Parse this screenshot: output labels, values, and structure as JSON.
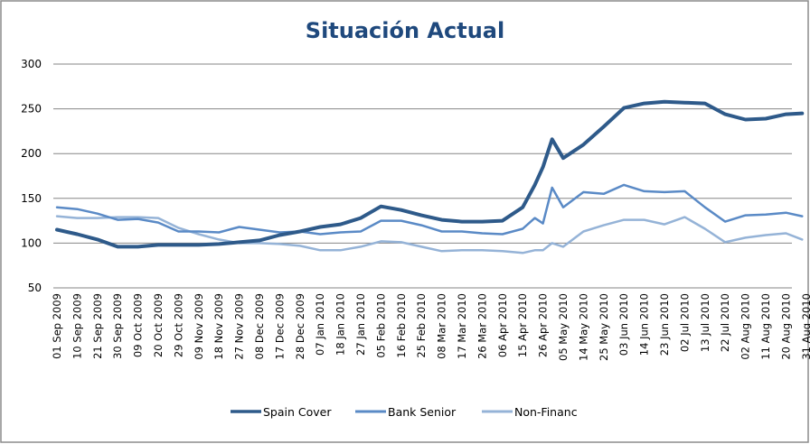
{
  "chart_data": {
    "type": "line",
    "title": "Situación Actual",
    "xlabel": "",
    "ylabel": "",
    "ylim": [
      50,
      300
    ],
    "yticks": [
      "50",
      "100",
      "150",
      "200",
      "250",
      "300"
    ],
    "grid": true,
    "legend_position": "bottom",
    "categories": [
      "01 Sep 2009",
      "10 Sep 2009",
      "21 Sep 2009",
      "30 Sep 2009",
      "09 Oct 2009",
      "20 Oct 2009",
      "29 Oct 2009",
      "09 Nov 2009",
      "18 Nov 2009",
      "27 Nov 2009",
      "08 Dec 2009",
      "17 Dec 2009",
      "28 Dec 2009",
      "07 Jan 2010",
      "18 Jan 2010",
      "27 Jan 2010",
      "05 Feb 2010",
      "16 Feb 2010",
      "25 Feb 2010",
      "08 Mar 2010",
      "17 Mar 2010",
      "26 Mar 2010",
      "06 Apr 2010",
      "15 Apr 2010",
      "26 Apr 2010",
      "05 May 2010",
      "14 May 2010",
      "25 May 2010",
      "03 Jun 2010",
      "14 Jun 2010",
      "23 Jun 2010",
      "02 Jul 2010",
      "13 Jul 2010",
      "22 Jul 2010",
      "02 Aug 2010",
      "11 Aug 2010",
      "20 Aug 2010",
      "31 Aug 2010"
    ],
    "x": [
      0,
      1,
      2,
      3,
      4,
      5,
      6,
      7,
      8,
      9,
      10,
      11,
      12,
      13,
      14,
      15,
      16,
      17,
      18,
      19,
      20,
      21,
      22,
      23,
      23.6,
      24,
      24.45,
      25,
      26,
      27,
      28,
      29,
      30,
      31,
      32,
      33,
      34,
      35,
      36,
      36.8
    ],
    "series": [
      {
        "name": "Spain Cover",
        "color": "#2E5A8A",
        "width": 4,
        "values": [
          115,
          110,
          104,
          96,
          96,
          98,
          98,
          98,
          99,
          101,
          103,
          109,
          113,
          118,
          121,
          128,
          141,
          137,
          131,
          126,
          124,
          124,
          125,
          140,
          165,
          185,
          216,
          195,
          210,
          230,
          251,
          256,
          258,
          257,
          256,
          244,
          238,
          239,
          244,
          245
        ]
      },
      {
        "name": "Bank Senior",
        "color": "#5A8AC6",
        "width": 2.5,
        "values": [
          140,
          138,
          133,
          126,
          127,
          123,
          113,
          113,
          112,
          118,
          115,
          112,
          113,
          110,
          112,
          113,
          125,
          125,
          120,
          113,
          113,
          111,
          110,
          116,
          128,
          122,
          162,
          140,
          157,
          155,
          165,
          158,
          157,
          158,
          140,
          124,
          131,
          132,
          134,
          130
        ]
      },
      {
        "name": "Non-Financ",
        "color": "#95B3D7",
        "width": 2.5,
        "values": [
          130,
          128,
          128,
          129,
          129,
          128,
          117,
          110,
          104,
          100,
          100,
          99,
          97,
          92,
          92,
          96,
          102,
          101,
          96,
          91,
          92,
          92,
          91,
          89,
          92,
          92,
          100,
          96,
          113,
          120,
          126,
          126,
          121,
          129,
          116,
          101,
          106,
          109,
          111,
          104
        ]
      }
    ]
  }
}
